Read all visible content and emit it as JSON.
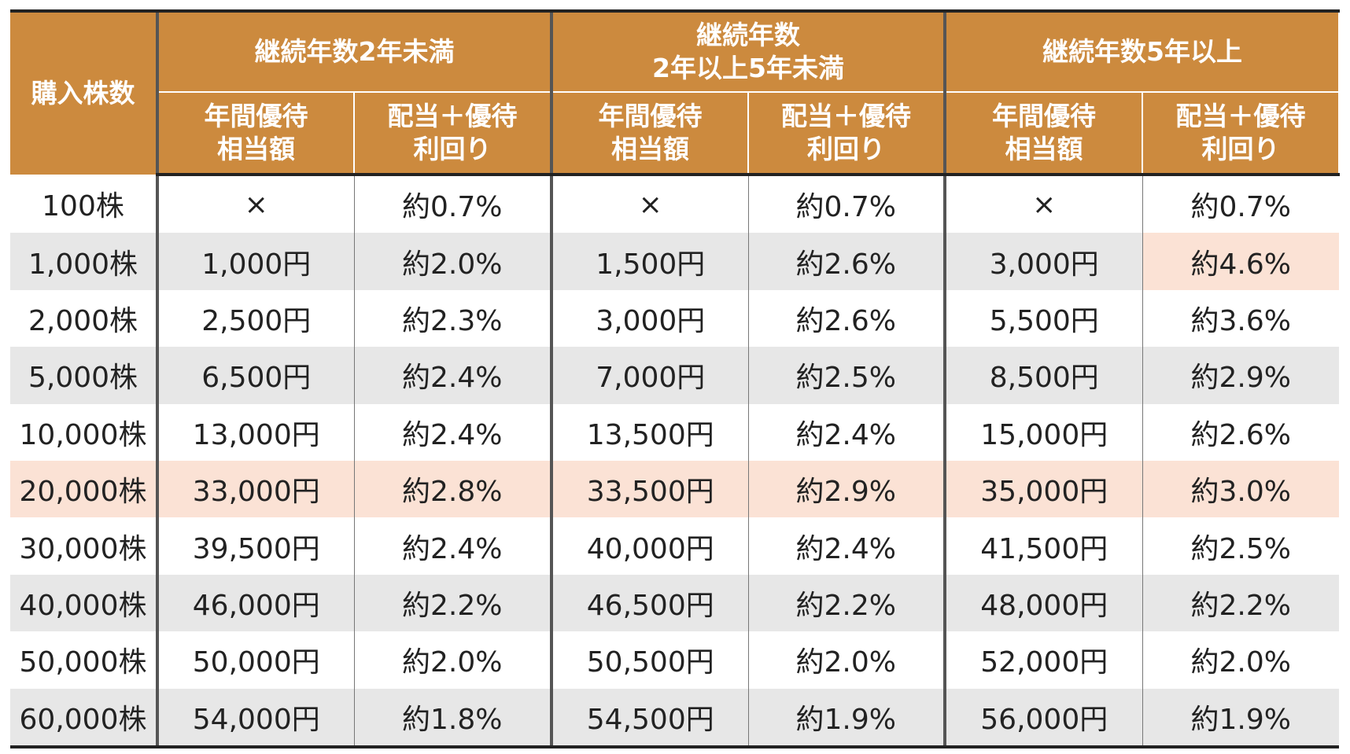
{
  "table": {
    "header": {
      "row_label": "購入株数",
      "groups": [
        "継続年数2年未満",
        "継続年数\n2年以上5年未満",
        "継続年数5年以上"
      ],
      "subcolumns": [
        "年間優待\n相当額",
        "配当＋優待\n利回り",
        "年間優待\n相当額",
        "配当＋優待\n利回り",
        "年間優待\n相当額",
        "配当＋優待\n利回り"
      ]
    },
    "rows": [
      [
        "100株",
        "×",
        "約0.7%",
        "×",
        "約0.7%",
        "×",
        "約0.7%"
      ],
      [
        "1,000株",
        "1,000円",
        "約2.0%",
        "1,500円",
        "約2.6%",
        "3,000円",
        "約4.6%"
      ],
      [
        "2,000株",
        "2,500円",
        "約2.3%",
        "3,000円",
        "約2.6%",
        "5,500円",
        "約3.6%"
      ],
      [
        "5,000株",
        "6,500円",
        "約2.4%",
        "7,000円",
        "約2.5%",
        "8,500円",
        "約2.9%"
      ],
      [
        "10,000株",
        "13,000円",
        "約2.4%",
        "13,500円",
        "約2.4%",
        "15,000円",
        "約2.6%"
      ],
      [
        "20,000株",
        "33,000円",
        "約2.8%",
        "33,500円",
        "約2.9%",
        "35,000円",
        "約3.0%"
      ],
      [
        "30,000株",
        "39,500円",
        "約2.4%",
        "40,000円",
        "約2.4%",
        "41,500円",
        "約2.5%"
      ],
      [
        "40,000株",
        "46,000円",
        "約2.2%",
        "46,500円",
        "約2.2%",
        "48,000円",
        "約2.2%"
      ],
      [
        "50,000株",
        "50,000円",
        "約2.0%",
        "50,500円",
        "約2.0%",
        "52,000円",
        "約2.0%"
      ],
      [
        "60,000株",
        "54,000円",
        "約1.8%",
        "54,500円",
        "約1.9%",
        "56,000円",
        "約1.9%"
      ]
    ]
  }
}
